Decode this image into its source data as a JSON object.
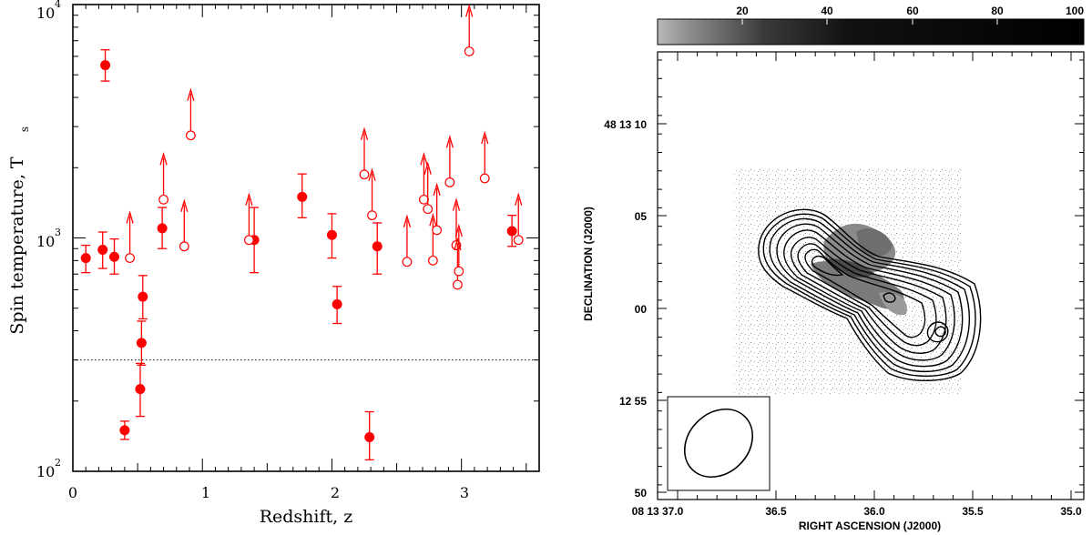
{
  "chart_data": [
    {
      "type": "scatter",
      "title": "",
      "xlabel": "Redshift, z",
      "ylabel": "Spin temperature, T",
      "ylabel_sub": "s",
      "xlim": [
        0,
        3.6
      ],
      "ylim": [
        100,
        10000
      ],
      "yscale": "log",
      "xticks": [
        "0",
        "1",
        "2",
        "3"
      ],
      "yticks": [
        {
          "base": "10",
          "exp": "2"
        },
        {
          "base": "10",
          "exp": "3"
        },
        {
          "base": "10",
          "exp": "4"
        }
      ],
      "reference_line": {
        "y": 300,
        "style": "dotted"
      },
      "color": "#ff0000",
      "detections": [
        {
          "x": 0.1,
          "y": 820,
          "lo": 710,
          "hi": 930
        },
        {
          "x": 0.23,
          "y": 890,
          "lo": 740,
          "hi": 1060
        },
        {
          "x": 0.25,
          "y": 5500,
          "lo": 4700,
          "hi": 6400
        },
        {
          "x": 0.32,
          "y": 830,
          "lo": 700,
          "hi": 990
        },
        {
          "x": 0.4,
          "y": 150,
          "lo": 137,
          "hi": 164
        },
        {
          "x": 0.52,
          "y": 225,
          "lo": 172,
          "hi": 290
        },
        {
          "x": 0.53,
          "y": 355,
          "lo": 285,
          "hi": 440
        },
        {
          "x": 0.54,
          "y": 560,
          "lo": 450,
          "hi": 690
        },
        {
          "x": 0.69,
          "y": 1100,
          "lo": 900,
          "hi": 1350
        },
        {
          "x": 1.4,
          "y": 980,
          "lo": 710,
          "hi": 1350
        },
        {
          "x": 1.77,
          "y": 1500,
          "lo": 1220,
          "hi": 1880
        },
        {
          "x": 2.0,
          "y": 1030,
          "lo": 820,
          "hi": 1270
        },
        {
          "x": 2.04,
          "y": 520,
          "lo": 430,
          "hi": 620
        },
        {
          "x": 2.29,
          "y": 140,
          "lo": 112,
          "hi": 180
        },
        {
          "x": 2.35,
          "y": 920,
          "lo": 700,
          "hi": 1160
        },
        {
          "x": 3.39,
          "y": 1070,
          "lo": 920,
          "hi": 1250
        }
      ],
      "lower_limits": [
        {
          "x": 0.44,
          "y": 820
        },
        {
          "x": 0.7,
          "y": 1460
        },
        {
          "x": 0.86,
          "y": 920
        },
        {
          "x": 0.91,
          "y": 2750
        },
        {
          "x": 1.36,
          "y": 980
        },
        {
          "x": 2.25,
          "y": 1870
        },
        {
          "x": 2.31,
          "y": 1250
        },
        {
          "x": 2.58,
          "y": 790
        },
        {
          "x": 2.71,
          "y": 1460
        },
        {
          "x": 2.74,
          "y": 1330
        },
        {
          "x": 2.78,
          "y": 800
        },
        {
          "x": 2.81,
          "y": 1080
        },
        {
          "x": 2.91,
          "y": 1730
        },
        {
          "x": 2.96,
          "y": 930
        },
        {
          "x": 2.97,
          "y": 630
        },
        {
          "x": 2.98,
          "y": 720
        },
        {
          "x": 3.06,
          "y": 6300
        },
        {
          "x": 3.18,
          "y": 1800
        },
        {
          "x": 3.44,
          "y": 980
        }
      ]
    },
    {
      "type": "heatmap",
      "title": "",
      "xlabel": "RIGHT ASCENSION (J2000)",
      "ylabel": "DECLINATION (J2000)",
      "xticks": [
        "08 13 37.0",
        "36.5",
        "36.0",
        "35.5",
        "35.0"
      ],
      "yticks": [
        "48 13 10",
        "05",
        "00",
        "12 55",
        "50"
      ],
      "colorbar": {
        "ticks": [
          "20",
          "40",
          "60",
          "80",
          "100"
        ],
        "range": [
          0,
          100
        ],
        "colors": [
          "#ffffff",
          "#000000"
        ]
      },
      "contour_levels": 10,
      "beam_inset": true
    }
  ]
}
